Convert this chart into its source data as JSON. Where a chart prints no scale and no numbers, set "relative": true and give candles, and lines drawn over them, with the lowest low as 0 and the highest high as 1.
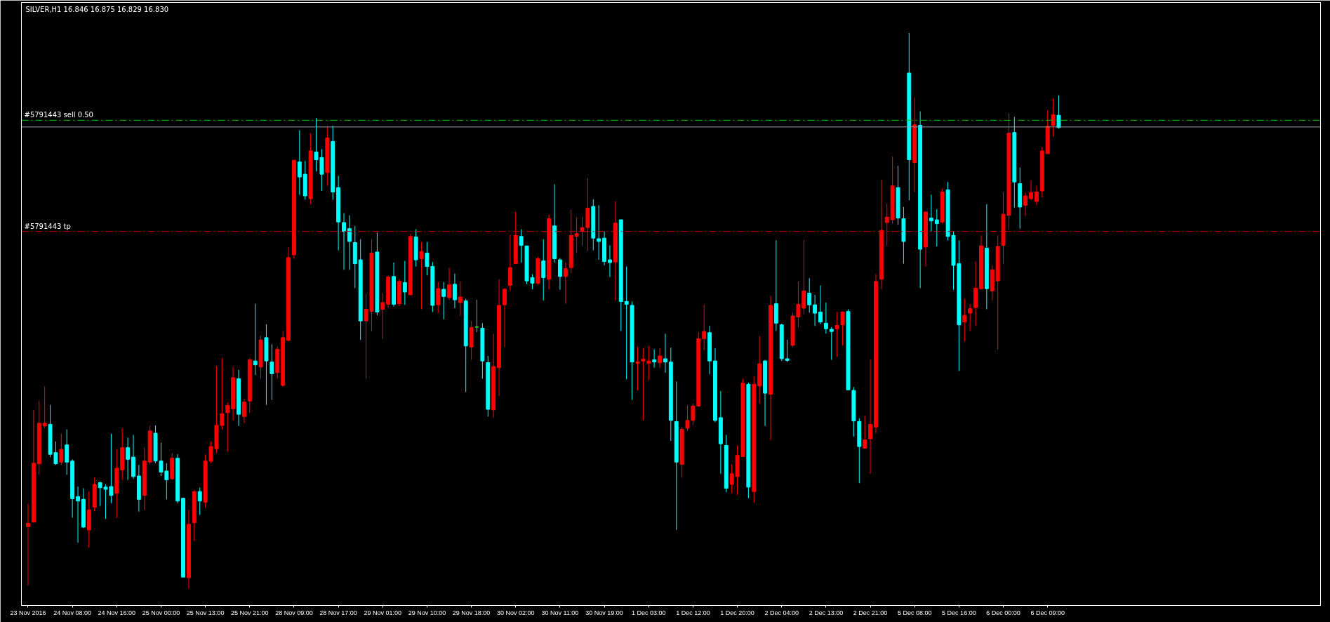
{
  "chart_data": {
    "type": "candlestick",
    "title": "SILVER,H1  16.846 16.875 16.829 16.830",
    "relative": true,
    "categories": [
      "23 Nov 2016",
      null,
      null,
      null,
      null,
      null,
      null,
      null,
      "24 Nov 08:00",
      null,
      null,
      null,
      null,
      null,
      null,
      null,
      "24 Nov 16:00",
      null,
      null,
      null,
      null,
      null,
      null,
      null,
      "25 Nov 00:00",
      null,
      null,
      null,
      null,
      null,
      null,
      null,
      "25 Nov 13:00",
      null,
      null,
      null,
      null,
      null,
      null,
      null,
      "25 Nov 21:00",
      null,
      null,
      null,
      null,
      null,
      null,
      null,
      "28 Nov 09:00",
      null,
      null,
      null,
      null,
      null,
      null,
      null,
      "28 Nov 17:00",
      null,
      null,
      null,
      null,
      null,
      null,
      null,
      "29 Nov 01:00",
      null,
      null,
      null,
      null,
      null,
      null,
      null,
      "29 Nov 10:00",
      null,
      null,
      null,
      null,
      null,
      null,
      null,
      "29 Nov 18:00",
      null,
      null,
      null,
      null,
      null,
      null,
      null,
      "30 Nov 02:00",
      null,
      null,
      null,
      null,
      null,
      null,
      null,
      "30 Nov 11:00",
      null,
      null,
      null,
      null,
      null,
      null,
      null,
      "30 Nov 19:00",
      null,
      null,
      null,
      null,
      null,
      null,
      null,
      "1 Dec 03:00",
      null,
      null,
      null,
      null,
      null,
      null,
      null,
      "1 Dec 12:00",
      null,
      null,
      null,
      null,
      null,
      null,
      null,
      "1 Dec 20:00",
      null,
      null,
      null,
      null,
      null,
      null,
      null,
      "2 Dec 04:00",
      null,
      null,
      null,
      null,
      null,
      null,
      null,
      "2 Dec 13:00",
      null,
      null,
      null,
      null,
      null,
      null,
      null,
      "2 Dec 21:00",
      null,
      null,
      null,
      null,
      null,
      null,
      null,
      "5 Dec 08:00",
      null,
      null,
      null,
      null,
      null,
      null,
      null,
      "5 Dec 16:00",
      null,
      null,
      null,
      null,
      null,
      null,
      null,
      "6 Dec 00:00",
      null,
      null,
      null,
      null,
      null,
      null,
      null,
      "6 Dec 09:00",
      null,
      null
    ],
    "ohlc": [
      [
        0.112,
        0.153,
        0.006,
        0.118
      ],
      [
        0.12,
        0.322,
        0.12,
        0.226
      ],
      [
        0.225,
        0.338,
        0.205,
        0.298
      ],
      [
        0.293,
        0.364,
        0.289,
        0.298
      ],
      [
        0.296,
        0.331,
        0.237,
        0.242
      ],
      [
        0.245,
        0.265,
        0.223,
        0.225
      ],
      [
        0.228,
        0.279,
        0.223,
        0.251
      ],
      [
        0.259,
        0.287,
        0.205,
        0.228
      ],
      [
        0.23,
        0.233,
        0.128,
        0.162
      ],
      [
        0.166,
        0.184,
        0.083,
        0.158
      ],
      [
        0.161,
        0.181,
        0.109,
        0.111
      ],
      [
        0.106,
        0.175,
        0.074,
        0.142
      ],
      [
        0.147,
        0.2,
        0.139,
        0.188
      ],
      [
        0.191,
        0.193,
        0.149,
        0.182
      ],
      [
        0.183,
        0.188,
        0.126,
        0.179
      ],
      [
        0.184,
        0.279,
        0.154,
        0.168
      ],
      [
        0.172,
        0.251,
        0.128,
        0.217
      ],
      [
        0.214,
        0.289,
        0.196,
        0.254
      ],
      [
        0.254,
        0.272,
        0.196,
        0.233
      ],
      [
        0.237,
        0.277,
        0.198,
        0.202
      ],
      [
        0.203,
        0.223,
        0.139,
        0.161
      ],
      [
        0.168,
        0.254,
        0.142,
        0.23
      ],
      [
        0.228,
        0.293,
        0.224,
        0.284
      ],
      [
        0.28,
        0.294,
        0.226,
        0.23
      ],
      [
        0.23,
        0.263,
        0.203,
        0.21
      ],
      [
        0.212,
        0.226,
        0.161,
        0.196
      ],
      [
        0.198,
        0.244,
        0.196,
        0.235
      ],
      [
        0.235,
        0.242,
        0.154,
        0.158
      ],
      [
        0.163,
        0.163,
        0.021,
        0.021
      ],
      [
        0.02,
        0.142,
        0,
        0.116
      ],
      [
        0.119,
        0.177,
        0.086,
        0.175
      ],
      [
        0.175,
        0.182,
        0.133,
        0.158
      ],
      [
        0.156,
        0.242,
        0.146,
        0.23
      ],
      [
        0.23,
        0.265,
        0.226,
        0.256
      ],
      [
        0.252,
        0.401,
        0.244,
        0.294
      ],
      [
        0.294,
        0.415,
        0.286,
        0.315
      ],
      [
        0.317,
        0.335,
        0.247,
        0.33
      ],
      [
        0.324,
        0.399,
        0.303,
        0.38
      ],
      [
        0.378,
        0.394,
        0.293,
        0.314
      ],
      [
        0.31,
        0.342,
        0.298,
        0.336
      ],
      [
        0.338,
        0.415,
        0.317,
        0.412
      ],
      [
        0.41,
        0.513,
        0.385,
        0.403
      ],
      [
        0.399,
        0.455,
        0.378,
        0.448
      ],
      [
        0.452,
        0.476,
        0.331,
        0.41
      ],
      [
        0.408,
        0.44,
        0.34,
        0.387
      ],
      [
        0.389,
        0.436,
        0.378,
        0.431
      ],
      [
        0.366,
        0.464,
        0.364,
        0.452
      ],
      [
        0.447,
        0.615,
        0.445,
        0.596
      ],
      [
        0.601,
        0.772,
        0.594,
        0.771
      ],
      [
        0.768,
        0.825,
        0.709,
        0.741
      ],
      [
        0.746,
        0.77,
        0.7,
        0.707
      ],
      [
        0.702,
        0.819,
        0.692,
        0.788
      ],
      [
        0.786,
        0.847,
        0.751,
        0.772
      ],
      [
        0.776,
        0.791,
        0.716,
        0.746
      ],
      [
        0.749,
        0.832,
        0.725,
        0.811
      ],
      [
        0.805,
        0.833,
        0.7,
        0.714
      ],
      [
        0.722,
        0.743,
        0.609,
        0.66
      ],
      [
        0.659,
        0.676,
        0.574,
        0.643
      ],
      [
        0.648,
        0.672,
        0.574,
        0.625
      ],
      [
        0.623,
        0.653,
        0.541,
        0.585
      ],
      [
        0.592,
        0.629,
        0.448,
        0.482
      ],
      [
        0.482,
        0.531,
        0.378,
        0.503
      ],
      [
        0.499,
        0.629,
        0.464,
        0.604
      ],
      [
        0.606,
        0.641,
        0.492,
        0.498
      ],
      [
        0.503,
        0.532,
        0.45,
        0.515
      ],
      [
        0.512,
        0.564,
        0.506,
        0.561
      ],
      [
        0.562,
        0.587,
        0.508,
        0.512
      ],
      [
        0.513,
        0.557,
        0.508,
        0.553
      ],
      [
        0.551,
        0.59,
        0.511,
        0.534
      ],
      [
        0.529,
        0.638,
        0.529,
        0.634
      ],
      [
        0.633,
        0.647,
        0.58,
        0.592
      ],
      [
        0.594,
        0.624,
        0.503,
        0.607
      ],
      [
        0.604,
        0.624,
        0.564,
        0.58
      ],
      [
        0.58,
        0.588,
        0.498,
        0.51
      ],
      [
        0.511,
        0.552,
        0.496,
        0.54
      ],
      [
        0.539,
        0.552,
        0.485,
        0.526
      ],
      [
        0.524,
        0.578,
        0.52,
        0.547
      ],
      [
        0.548,
        0.567,
        0.505,
        0.52
      ],
      [
        0.515,
        0.553,
        0.491,
        0.525
      ],
      [
        0.518,
        0.522,
        0.354,
        0.437
      ],
      [
        0.435,
        0.482,
        0.412,
        0.47
      ],
      [
        0.471,
        0.52,
        0.462,
        0.471
      ],
      [
        0.469,
        0.478,
        0.378,
        0.41
      ],
      [
        0.407,
        0.419,
        0.31,
        0.323
      ],
      [
        0.322,
        0.459,
        0.308,
        0.4
      ],
      [
        0.398,
        0.557,
        0.347,
        0.51
      ],
      [
        0.511,
        0.541,
        0.435,
        0.539
      ],
      [
        0.546,
        0.637,
        0.536,
        0.578
      ],
      [
        0.585,
        0.678,
        0.585,
        0.636
      ],
      [
        0.634,
        0.647,
        0.587,
        0.618
      ],
      [
        0.617,
        0.617,
        0.548,
        0.554
      ],
      [
        0.56,
        0.566,
        0.539,
        0.55
      ],
      [
        0.55,
        0.597,
        0.547,
        0.594
      ],
      [
        0.59,
        0.629,
        0.519,
        0.56
      ],
      [
        0.557,
        0.673,
        0.539,
        0.666
      ],
      [
        0.653,
        0.728,
        0.587,
        0.594
      ],
      [
        0.592,
        0.595,
        0.538,
        0.562
      ],
      [
        0.562,
        0.587,
        0.513,
        0.576
      ],
      [
        0.578,
        0.682,
        0.568,
        0.636
      ],
      [
        0.634,
        0.669,
        0.604,
        0.639
      ],
      [
        0.643,
        0.669,
        0.617,
        0.65
      ],
      [
        0.65,
        0.739,
        0.608,
        0.685
      ],
      [
        0.688,
        0.701,
        0.609,
        0.631
      ],
      [
        0.63,
        0.69,
        0.592,
        0.625
      ],
      [
        0.631,
        0.643,
        0.582,
        0.589
      ],
      [
        0.592,
        0.618,
        0.561,
        0.587
      ],
      [
        0.588,
        0.697,
        0.518,
        0.658
      ],
      [
        0.664,
        0.664,
        0.464,
        0.517
      ],
      [
        0.517,
        0.58,
        0.377,
        0.512
      ],
      [
        0.51,
        0.517,
        0.34,
        0.408
      ],
      [
        0.406,
        0.435,
        0.357,
        0.408
      ],
      [
        0.41,
        0.433,
        0.303,
        0.413
      ],
      [
        0.406,
        0.437,
        0.375,
        0.41
      ],
      [
        0.412,
        0.431,
        0.398,
        0.408
      ],
      [
        0.407,
        0.433,
        0.398,
        0.419
      ],
      [
        0.414,
        0.459,
        0.389,
        0.408
      ],
      [
        0.408,
        0.434,
        0.266,
        0.303
      ],
      [
        0.301,
        0.373,
        0.106,
        0.228
      ],
      [
        0.224,
        0.291,
        0.2,
        0.287
      ],
      [
        0.289,
        0.33,
        0.284,
        0.303
      ],
      [
        0.303,
        0.333,
        0.295,
        0.329
      ],
      [
        0.329,
        0.462,
        0.328,
        0.45
      ],
      [
        0.45,
        0.511,
        0.429,
        0.463
      ],
      [
        0.461,
        0.473,
        0.386,
        0.41
      ],
      [
        0.41,
        0.433,
        0.3,
        0.303
      ],
      [
        0.308,
        0.356,
        0.207,
        0.261
      ],
      [
        0.258,
        0.277,
        0.174,
        0.181
      ],
      [
        0.188,
        0.224,
        0.172,
        0.207
      ],
      [
        0.202,
        0.258,
        0.169,
        0.24
      ],
      [
        0.238,
        0.378,
        0.237,
        0.37
      ],
      [
        0.368,
        0.371,
        0.163,
        0.183
      ],
      [
        0.175,
        0.382,
        0.155,
        0.368
      ],
      [
        0.365,
        0.455,
        0.333,
        0.405
      ],
      [
        0.41,
        0.412,
        0.293,
        0.352
      ],
      [
        0.35,
        0.527,
        0.267,
        0.51
      ],
      [
        0.513,
        0.627,
        0.464,
        0.478
      ],
      [
        0.475,
        0.477,
        0.41,
        0.414
      ],
      [
        0.414,
        0.448,
        0.408,
        0.411
      ],
      [
        0.438,
        0.497,
        0.435,
        0.491
      ],
      [
        0.489,
        0.553,
        0.471,
        0.512
      ],
      [
        0.505,
        0.627,
        0.494,
        0.536
      ],
      [
        0.532,
        0.559,
        0.497,
        0.511
      ],
      [
        0.511,
        0.529,
        0.473,
        0.496
      ],
      [
        0.498,
        0.546,
        0.476,
        0.48
      ],
      [
        0.478,
        0.515,
        0.459,
        0.468
      ],
      [
        0.467,
        0.471,
        0.412,
        0.463
      ],
      [
        0.468,
        0.498,
        0.417,
        0.474
      ],
      [
        0.475,
        0.499,
        0.438,
        0.498
      ],
      [
        0.499,
        0.503,
        0.358,
        0.358
      ],
      [
        0.357,
        0.363,
        0.274,
        0.302
      ],
      [
        0.301,
        0.307,
        0.19,
        0.256
      ],
      [
        0.253,
        0.312,
        0.253,
        0.268
      ],
      [
        0.27,
        0.413,
        0.207,
        0.296
      ],
      [
        0.291,
        0.566,
        0.28,
        0.553
      ],
      [
        0.557,
        0.736,
        0.539,
        0.645
      ],
      [
        0.659,
        0.693,
        0.617,
        0.669
      ],
      [
        0.664,
        0.778,
        0.657,
        0.725
      ],
      [
        0.722,
        0.761,
        0.655,
        0.667
      ],
      [
        0.666,
        0.687,
        0.585,
        0.625
      ],
      [
        0.928,
        1,
        0.699,
        0.772
      ],
      [
        0.767,
        0.884,
        0.714,
        0.835
      ],
      [
        0.834,
        0.859,
        0.541,
        0.611
      ],
      [
        0.615,
        0.678,
        0.58,
        0.678
      ],
      [
        0.667,
        0.709,
        0.643,
        0.662
      ],
      [
        0.664,
        0.683,
        0.616,
        0.657
      ],
      [
        0.66,
        0.72,
        0.657,
        0.714
      ],
      [
        0.718,
        0.732,
        0.627,
        0.634
      ],
      [
        0.636,
        0.643,
        0.538,
        0.582
      ],
      [
        0.585,
        0.627,
        0.392,
        0.475
      ],
      [
        0.48,
        0.522,
        0.445,
        0.492
      ],
      [
        0.496,
        0.512,
        0.464,
        0.504
      ],
      [
        0.506,
        0.589,
        0.473,
        0.541
      ],
      [
        0.54,
        0.636,
        0.538,
        0.617
      ],
      [
        0.613,
        0.692,
        0.503,
        0.54
      ],
      [
        0.536,
        0.582,
        0.518,
        0.574
      ],
      [
        0.554,
        0.636,
        0.431,
        0.616
      ],
      [
        0.618,
        0.714,
        0.585,
        0.674
      ],
      [
        0.672,
        0.856,
        0.646,
        0.82
      ],
      [
        0.821,
        0.849,
        0.686,
        0.732
      ],
      [
        0.729,
        0.758,
        0.648,
        0.687
      ],
      [
        0.69,
        0.713,
        0.671,
        0.707
      ],
      [
        0.702,
        0.735,
        0.699,
        0.713
      ],
      [
        0.697,
        0.725,
        0.69,
        0.714
      ],
      [
        0.716,
        0.795,
        0.704,
        0.788
      ],
      [
        0.783,
        0.861,
        0.783,
        0.832
      ],
      [
        0.834,
        0.882,
        0.814,
        0.853
      ],
      [
        0.852,
        0.888,
        0.828,
        0.83
      ]
    ],
    "colors": [
      "#ff0000",
      "#ff0000",
      "#ff0000",
      "#ff0000",
      "#00ffff",
      "#00ffff",
      "#ff0000",
      "#00ffff",
      "#00ffff",
      "#00ffff",
      "#00ffff",
      "#ff0000",
      "#ff0000",
      "#00ffff",
      "#00ffff",
      "#00ffff",
      "#ff0000",
      "#ff0000",
      "#00ffff",
      "#00ffff",
      "#00ffff",
      "#ff0000",
      "#ff0000",
      "#00ffff",
      "#00ffff",
      "#00ffff",
      "#ff0000",
      "#00ffff",
      "#00ffff",
      "#ff0000",
      "#ff0000",
      "#00ffff",
      "#ff0000",
      "#ff0000",
      "#ff0000",
      "#ff0000",
      "#ff0000",
      "#ff0000",
      "#00ffff",
      "#ff0000",
      "#ff0000",
      "#00ffff",
      "#ff0000",
      "#00ffff",
      "#00ffff",
      "#ff0000",
      "#ff0000",
      "#ff0000",
      "#ff0000",
      "#00ffff",
      "#00ffff",
      "#ff0000",
      "#00ffff",
      "#00ffff",
      "#ff0000",
      "#00ffff",
      "#00ffff",
      "#00ffff",
      "#00ffff",
      "#00ffff",
      "#00ffff",
      "#ff0000",
      "#ff0000",
      "#00ffff",
      "#ff0000",
      "#ff0000",
      "#00ffff",
      "#ff0000",
      "#00ffff",
      "#ff0000",
      "#00ffff",
      "#ff0000",
      "#00ffff",
      "#00ffff",
      "#ff0000",
      "#00ffff",
      "#ff0000",
      "#00ffff",
      "#ff0000",
      "#00ffff",
      "#ff0000",
      "#00ff00",
      "#00ffff",
      "#00ffff",
      "#ff0000",
      "#ff0000",
      "#ff0000",
      "#ff0000",
      "#ff0000",
      "#00ffff",
      "#00ffff",
      "#00ffff",
      "#ff0000",
      "#00ffff",
      "#ff0000",
      "#00ffff",
      "#00ffff",
      "#ff0000",
      "#ff0000",
      "#ff0000",
      "#ff0000",
      "#ff0000",
      "#00ffff",
      "#00ffff",
      "#00ffff",
      "#00ffff",
      "#ff0000",
      "#00ffff",
      "#00ffff",
      "#00ffff",
      "#ff0000",
      "#ff0000",
      "#ff0000",
      "#00ffff",
      "#ff0000",
      "#00ffff",
      "#00ffff",
      "#00ffff",
      "#ff0000",
      "#ff0000",
      "#ff0000",
      "#ff0000",
      "#ff0000",
      "#00ffff",
      "#00ffff",
      "#00ffff",
      "#00ffff",
      "#ff0000",
      "#ff0000",
      "#ff0000",
      "#00ffff",
      "#ff0000",
      "#ff0000",
      "#00ffff",
      "#ff0000",
      "#00ffff",
      "#00ffff",
      "#00ffff",
      "#ff0000",
      "#ff0000",
      "#ff0000",
      "#00ffff",
      "#00ffff",
      "#00ffff",
      "#00ffff",
      "#00ffff",
      "#ff0000",
      "#ff0000",
      "#00ffff",
      "#00ffff",
      "#00ffff",
      "#ff0000",
      "#ff0000",
      "#ff0000",
      "#ff0000",
      "#ff0000",
      "#ff0000",
      "#00ffff",
      "#00ffff",
      "#00ffff",
      "#ff0000",
      "#00ffff",
      "#ff0000",
      "#00ffff",
      "#00ffff",
      "#ff0000",
      "#00ffff",
      "#00ffff",
      "#00ffff",
      "#ff0000",
      "#ff0000",
      "#ff0000",
      "#ff0000",
      "#00ffff",
      "#ff0000",
      "#ff0000",
      "#ff0000",
      "#ff0000",
      "#00ffff",
      "#00ffff",
      "#ff0000",
      "#ff0000",
      "#ff0000",
      "#ff0000",
      "#ff0000",
      "#ff0000",
      "#00ffff"
    ],
    "ref_lines": [
      {
        "axis": "y",
        "value": 0.843,
        "label": "#5791443 sell 0.50",
        "color": "#00c000",
        "line_style": "dashed"
      },
      {
        "axis": "y",
        "value": 0.643,
        "label": "#5791443 tp",
        "color": "#d00000",
        "line_style": "dashed"
      },
      {
        "axis": "y",
        "value": 0.831,
        "color": "#9aa0b4",
        "line_style": "solid"
      }
    ]
  }
}
